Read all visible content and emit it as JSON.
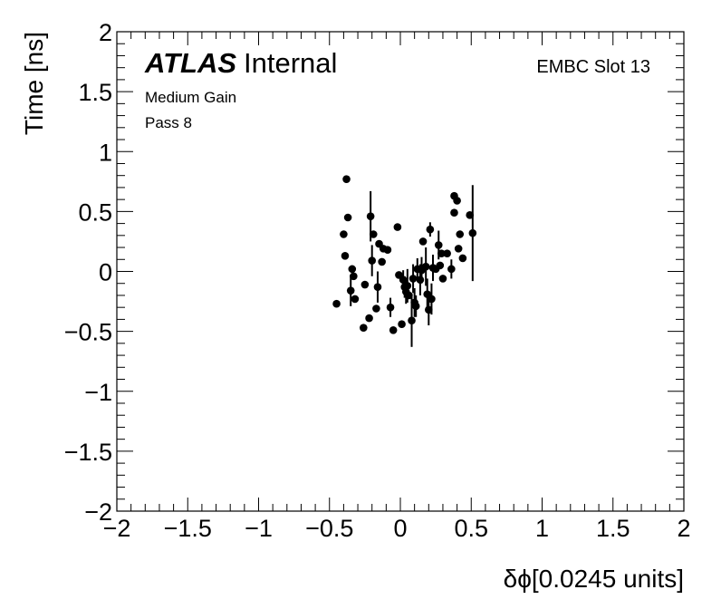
{
  "chart_data": {
    "type": "scatter",
    "title": "",
    "xlabel": "δϕ[0.0245 units]",
    "ylabel": "Time [ns]",
    "xlim": [
      -2,
      2
    ],
    "ylim": [
      -2,
      2
    ],
    "xticks": [
      "−2",
      "−1.5",
      "−1",
      "−0.5",
      "0",
      "0.5",
      "1",
      "1.5",
      "2"
    ],
    "yticks": [
      "−2",
      "−1.5",
      "−1",
      "−0.5",
      "0",
      "0.5",
      "1",
      "1.5",
      "2"
    ],
    "grid": false,
    "annotations": {
      "atlas": "ATLAS",
      "internal": "Internal",
      "gain": "Medium Gain",
      "pass": "Pass 8",
      "slot": "EMBC Slot 13"
    },
    "points": [
      {
        "x": -0.45,
        "y": -0.27,
        "err": 0.0
      },
      {
        "x": -0.4,
        "y": 0.31,
        "err": 0.0
      },
      {
        "x": -0.38,
        "y": 0.77,
        "err": 0.0
      },
      {
        "x": -0.39,
        "y": 0.13,
        "err": 0.0
      },
      {
        "x": -0.37,
        "y": 0.45,
        "err": 0.0
      },
      {
        "x": -0.35,
        "y": -0.16,
        "err": 0.13
      },
      {
        "x": -0.34,
        "y": 0.02,
        "err": 0.0
      },
      {
        "x": -0.33,
        "y": -0.04,
        "err": 0.0
      },
      {
        "x": -0.32,
        "y": -0.23,
        "err": 0.0
      },
      {
        "x": -0.26,
        "y": -0.47,
        "err": 0.0
      },
      {
        "x": -0.25,
        "y": -0.11,
        "err": 0.0
      },
      {
        "x": -0.22,
        "y": -0.39,
        "err": 0.0
      },
      {
        "x": -0.21,
        "y": 0.46,
        "err": 0.21
      },
      {
        "x": -0.2,
        "y": 0.09,
        "err": 0.13
      },
      {
        "x": -0.19,
        "y": 0.31,
        "err": 0.0
      },
      {
        "x": -0.17,
        "y": -0.31,
        "err": 0.0
      },
      {
        "x": -0.16,
        "y": -0.13,
        "err": 0.13
      },
      {
        "x": -0.15,
        "y": 0.23,
        "err": 0.0
      },
      {
        "x": -0.13,
        "y": 0.08,
        "err": 0.0
      },
      {
        "x": -0.12,
        "y": 0.19,
        "err": 0.0
      },
      {
        "x": -0.09,
        "y": 0.18,
        "err": 0.0
      },
      {
        "x": -0.07,
        "y": -0.3,
        "err": 0.08
      },
      {
        "x": -0.05,
        "y": -0.49,
        "err": 0.0
      },
      {
        "x": -0.02,
        "y": 0.37,
        "err": 0.0
      },
      {
        "x": -0.01,
        "y": -0.03,
        "err": 0.0
      },
      {
        "x": 0.01,
        "y": -0.44,
        "err": 0.0
      },
      {
        "x": 0.02,
        "y": -0.07,
        "err": 0.08
      },
      {
        "x": 0.03,
        "y": -0.13,
        "err": 0.09
      },
      {
        "x": 0.04,
        "y": -0.17,
        "err": 0.1
      },
      {
        "x": 0.05,
        "y": -0.12,
        "err": 0.14
      },
      {
        "x": 0.06,
        "y": -0.2,
        "err": 0.0
      },
      {
        "x": 0.08,
        "y": -0.41,
        "err": 0.22
      },
      {
        "x": 0.09,
        "y": -0.06,
        "err": 0.12
      },
      {
        "x": 0.1,
        "y": -0.26,
        "err": 0.12
      },
      {
        "x": 0.11,
        "y": -0.29,
        "err": 0.09
      },
      {
        "x": 0.12,
        "y": 0.02,
        "err": 0.09
      },
      {
        "x": 0.14,
        "y": -0.07,
        "err": 0.13
      },
      {
        "x": 0.15,
        "y": 0.01,
        "err": 0.11
      },
      {
        "x": 0.16,
        "y": 0.25,
        "err": 0.0
      },
      {
        "x": 0.18,
        "y": 0.04,
        "err": 0.16
      },
      {
        "x": 0.19,
        "y": -0.19,
        "err": 0.13
      },
      {
        "x": 0.2,
        "y": -0.32,
        "err": 0.13
      },
      {
        "x": 0.21,
        "y": 0.35,
        "err": 0.06
      },
      {
        "x": 0.22,
        "y": -0.23,
        "err": 0.13
      },
      {
        "x": 0.23,
        "y": 0.03,
        "err": 0.11
      },
      {
        "x": 0.25,
        "y": 0.02,
        "err": 0.0
      },
      {
        "x": 0.27,
        "y": 0.22,
        "err": 0.12
      },
      {
        "x": 0.28,
        "y": 0.05,
        "err": 0.0
      },
      {
        "x": 0.29,
        "y": 0.15,
        "err": 0.0
      },
      {
        "x": 0.3,
        "y": -0.06,
        "err": 0.0
      },
      {
        "x": 0.33,
        "y": 0.15,
        "err": 0.0
      },
      {
        "x": 0.36,
        "y": 0.02,
        "err": 0.08
      },
      {
        "x": 0.38,
        "y": 0.63,
        "err": 0.0
      },
      {
        "x": 0.38,
        "y": 0.49,
        "err": 0.0
      },
      {
        "x": 0.4,
        "y": 0.59,
        "err": 0.0
      },
      {
        "x": 0.41,
        "y": 0.19,
        "err": 0.0
      },
      {
        "x": 0.42,
        "y": 0.31,
        "err": 0.0
      },
      {
        "x": 0.44,
        "y": 0.11,
        "err": 0.0
      },
      {
        "x": 0.49,
        "y": 0.47,
        "err": 0.0
      },
      {
        "x": 0.51,
        "y": 0.32,
        "err": 0.4
      }
    ]
  }
}
